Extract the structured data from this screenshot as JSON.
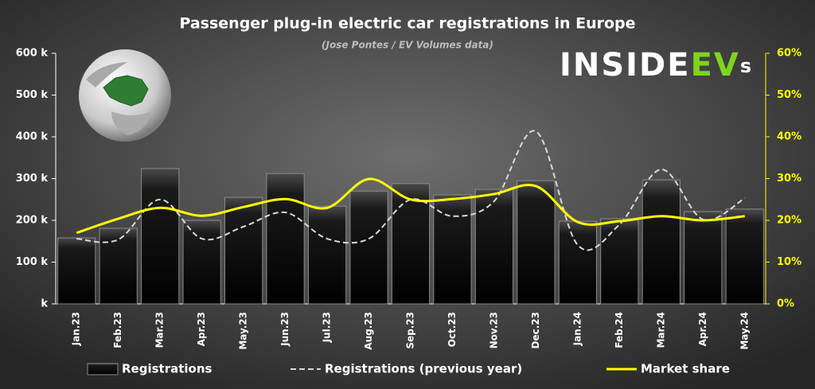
{
  "chart_data": {
    "type": "bar",
    "title": "Passenger plug-in electric car registrations in Europe",
    "subtitle": "(Jose Pontes / EV Volumes data)",
    "logo": [
      "INSIDE",
      "EV",
      "s"
    ],
    "categories": [
      "Jan.23",
      "Feb.23",
      "Mar.23",
      "Apr.23",
      "May.23",
      "Jun.23",
      "Jul.23",
      "Aug.23",
      "Sep.23",
      "Oct.23",
      "Nov.23",
      "Dec.23",
      "Jan.24",
      "Feb.24",
      "Mar.24",
      "Apr.24",
      "May.24"
    ],
    "series": [
      {
        "name": "Registrations",
        "type": "bar",
        "color": "#000000",
        "values": [
          158000,
          181000,
          324000,
          200000,
          255000,
          312000,
          234000,
          270000,
          288000,
          261000,
          274000,
          295000,
          198000,
          204000,
          297000,
          221000,
          227000
        ]
      },
      {
        "name": "Registrations (previous year)",
        "type": "line",
        "dashed": true,
        "color": "#d9d9d9",
        "values": [
          156000,
          154000,
          250000,
          156000,
          185000,
          219000,
          156000,
          156000,
          250000,
          210000,
          246000,
          413000,
          141000,
          190000,
          322000,
          202000,
          253000
        ]
      },
      {
        "name": "Market share",
        "type": "line",
        "axis": "y2",
        "color": "#ffff00",
        "values": [
          17.0,
          20.4,
          23.0,
          21.1,
          23.2,
          25.1,
          23.0,
          29.9,
          25.0,
          25.1,
          26.3,
          28.2,
          19.6,
          19.8,
          21.0,
          20.0,
          21.0
        ]
      }
    ],
    "ylim": [
      0,
      600000
    ],
    "yticks": [
      {
        "value": 0,
        "label": "k"
      },
      {
        "value": 100000,
        "label": "100 k"
      },
      {
        "value": 200000,
        "label": "200 k"
      },
      {
        "value": 300000,
        "label": "300 k"
      },
      {
        "value": 400000,
        "label": "400 k"
      },
      {
        "value": 500000,
        "label": "500 k"
      },
      {
        "value": 600000,
        "label": "600 k"
      }
    ],
    "y2lim": [
      0,
      60
    ],
    "y2ticks": [
      {
        "value": 0,
        "label": "0%"
      },
      {
        "value": 10,
        "label": "10%"
      },
      {
        "value": 20,
        "label": "20%"
      },
      {
        "value": 30,
        "label": "30%"
      },
      {
        "value": 40,
        "label": "40%"
      },
      {
        "value": 50,
        "label": "50%"
      },
      {
        "value": 60,
        "label": "60%"
      }
    ]
  }
}
